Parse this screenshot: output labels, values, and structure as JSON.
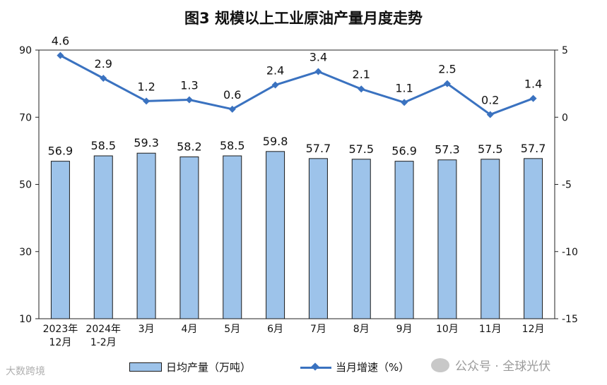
{
  "title": "图3  规模以上工业原油产量月度走势",
  "chart_data": {
    "type": "bar+line",
    "categories": [
      [
        "2023年",
        "12月"
      ],
      [
        "2024年",
        "1-2月"
      ],
      [
        "3月"
      ],
      [
        "4月"
      ],
      [
        "5月"
      ],
      [
        "6月"
      ],
      [
        "7月"
      ],
      [
        "8月"
      ],
      [
        "9月"
      ],
      [
        "10月"
      ],
      [
        "11月"
      ],
      [
        "12月"
      ]
    ],
    "series": [
      {
        "name": "日均产量（万吨）",
        "kind": "bar",
        "axis": "left",
        "color": "#9dc3ea",
        "values": [
          56.9,
          58.5,
          59.3,
          58.2,
          58.5,
          59.8,
          57.7,
          57.5,
          56.9,
          57.3,
          57.5,
          57.7
        ]
      },
      {
        "name": "当月增速（%）",
        "kind": "line",
        "axis": "right",
        "color": "#3a72c0",
        "values": [
          4.6,
          2.9,
          1.2,
          1.3,
          0.6,
          2.4,
          3.4,
          2.1,
          1.1,
          2.5,
          0.2,
          1.4
        ]
      }
    ],
    "y_left": {
      "min": 10,
      "max": 90,
      "ticks": [
        10,
        30,
        50,
        70,
        90
      ]
    },
    "y_right": {
      "min": -15,
      "max": 5,
      "ticks": [
        -15,
        -10,
        -5,
        0,
        5
      ]
    },
    "legend": "bottom"
  },
  "watermark": {
    "right": "公众号 · 全球光伏",
    "left": "大数跨境"
  }
}
